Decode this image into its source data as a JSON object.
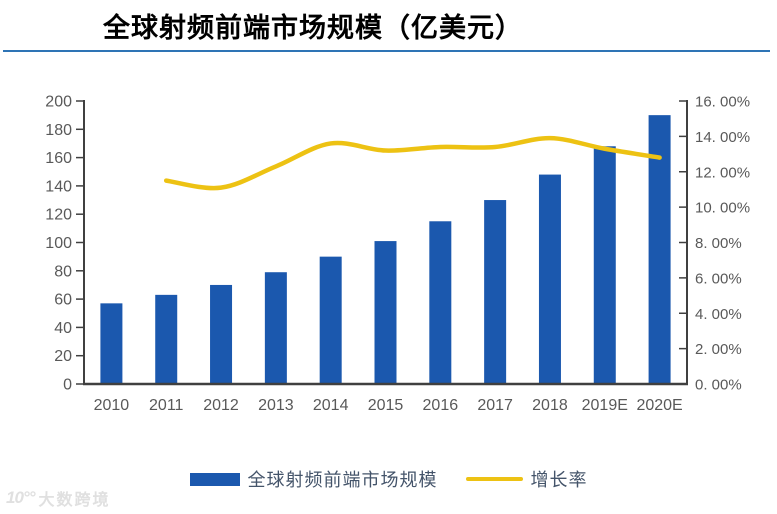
{
  "page": {
    "title": "全球射频前端市场规模（亿美元）"
  },
  "colors": {
    "bar": "#1b58ae",
    "line": "#edc213",
    "axis": "#404040",
    "tick_label": "#595959",
    "title_rule": "#2e74b5",
    "legend_text": "#44546a",
    "watermark": "#e0e0e0"
  },
  "chart_data": {
    "type": "bar",
    "title": "全球射频前端市场规模（亿美元）",
    "categories": [
      "2010",
      "2011",
      "2012",
      "2013",
      "2014",
      "2015",
      "2016",
      "2017",
      "2018",
      "2019E",
      "2020E"
    ],
    "series": [
      {
        "name": "全球射频前端市场规模",
        "type": "bar",
        "axis": "left",
        "unit": "亿美元",
        "values": [
          57,
          63,
          70,
          79,
          90,
          101,
          115,
          130,
          148,
          168,
          190
        ]
      },
      {
        "name": "增长率",
        "type": "line",
        "axis": "right",
        "unit": "%",
        "values": [
          null,
          11.5,
          11.1,
          12.3,
          13.6,
          13.2,
          13.4,
          13.4,
          13.9,
          13.3,
          12.8
        ]
      }
    ],
    "left_axis": {
      "min": 0,
      "max": 200,
      "step": 20,
      "tick_labels": [
        "0",
        "20",
        "40",
        "60",
        "80",
        "100",
        "120",
        "140",
        "160",
        "180",
        "200"
      ]
    },
    "right_axis": {
      "min": 0,
      "max": 16,
      "step": 2,
      "tick_labels": [
        "0. 00%",
        "2. 00%",
        "4. 00%",
        "6. 00%",
        "8. 00%",
        "10. 00%",
        "12. 00%",
        "14. 00%",
        "16. 00%"
      ]
    },
    "grid": false,
    "legend_position": "bottom"
  },
  "legend": {
    "items": [
      {
        "label": "全球射频前端市场规模",
        "swatch": "bar"
      },
      {
        "label": "增长率",
        "swatch": "line"
      }
    ]
  },
  "watermark": {
    "logo": "10°°",
    "text": "大数跨境"
  }
}
